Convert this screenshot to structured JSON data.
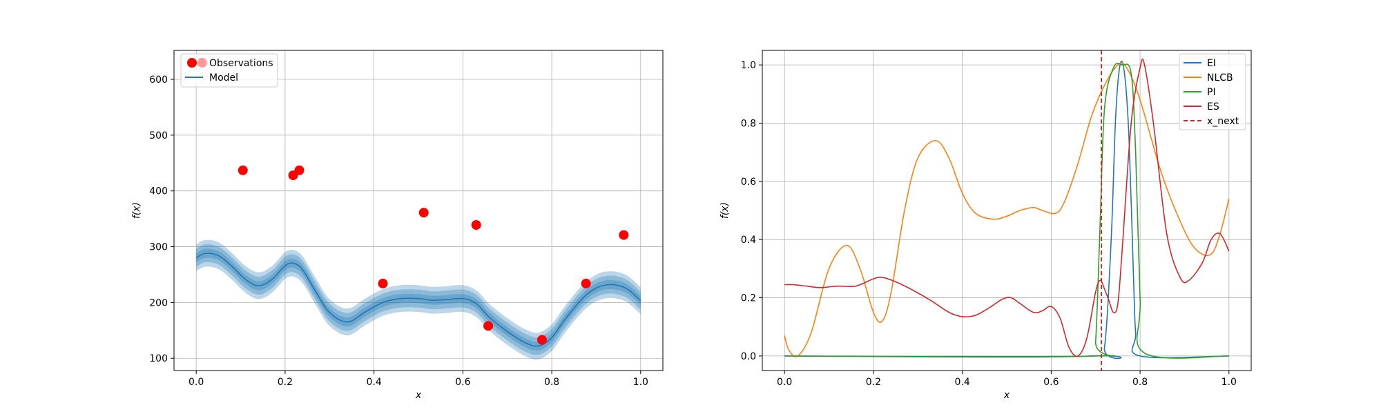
{
  "chart_data": [
    {
      "type": "scatter",
      "xlabel": "x",
      "ylabel": "f(x)",
      "xlim": [
        -0.05,
        1.05
      ],
      "ylim": [
        78,
        652
      ],
      "xticks": [
        0.0,
        0.2,
        0.4,
        0.6,
        0.8,
        1.0
      ],
      "xtick_labels": [
        "0.0",
        "0.2",
        "0.4",
        "0.6",
        "0.8",
        "1.0"
      ],
      "yticks": [
        100,
        200,
        300,
        400,
        500,
        600
      ],
      "ytick_labels": [
        "100",
        "200",
        "300",
        "400",
        "500",
        "600"
      ],
      "grid": true,
      "legend": {
        "position": "top-left",
        "entries": [
          "Observations",
          "Model"
        ]
      },
      "colors": {
        "observations": "#ff0000",
        "model": "#1f77b4",
        "band": "#1f77b4"
      },
      "observations": {
        "x": [
          0.015,
          0.105,
          0.218,
          0.232,
          0.42,
          0.512,
          0.63,
          0.657,
          0.778,
          0.877,
          0.962
        ],
        "y": [
          630,
          437,
          428,
          437,
          234,
          361,
          339,
          158,
          133,
          234,
          321
        ]
      },
      "model": {
        "x": [
          0,
          0.02,
          0.05,
          0.08,
          0.11,
          0.14,
          0.17,
          0.2,
          0.22,
          0.24,
          0.27,
          0.3,
          0.34,
          0.38,
          0.42,
          0.46,
          0.5,
          0.53,
          0.56,
          0.6,
          0.63,
          0.66,
          0.7,
          0.74,
          0.77,
          0.8,
          0.83,
          0.87,
          0.9,
          0.93,
          0.96,
          0.98,
          1.0
        ],
        "mean": [
          280,
          288,
          284,
          265,
          242,
          230,
          241,
          266,
          270,
          258,
          218,
          182,
          165,
          183,
          200,
          207,
          207,
          204,
          205,
          207,
          198,
          173,
          148,
          128,
          122,
          137,
          170,
          208,
          226,
          232,
          228,
          218,
          203
        ],
        "band_widths": [
          8,
          16,
          24
        ]
      }
    },
    {
      "type": "line",
      "xlabel": "x",
      "ylabel": "f(x)",
      "xlim": [
        -0.05,
        1.05
      ],
      "ylim": [
        -0.05,
        1.05
      ],
      "xticks": [
        0.0,
        0.2,
        0.4,
        0.6,
        0.8,
        1.0
      ],
      "xtick_labels": [
        "0.0",
        "0.2",
        "0.4",
        "0.6",
        "0.8",
        "1.0"
      ],
      "yticks": [
        0.0,
        0.2,
        0.4,
        0.6,
        0.8,
        1.0
      ],
      "ytick_labels": [
        "0.0",
        "0.2",
        "0.4",
        "0.6",
        "0.8",
        "1.0"
      ],
      "grid": true,
      "legend": {
        "position": "top-right"
      },
      "x_next": {
        "name": "x_next",
        "x": 0.713,
        "color": "#d62728"
      },
      "series": [
        {
          "name": "EI",
          "color": "#1f77b4",
          "x": [
            0,
            0.7,
            0.72,
            0.735,
            0.745,
            0.755,
            0.765,
            0.775,
            0.785,
            0.79,
            0.8,
            1.0
          ],
          "y": [
            0,
            0,
            0.03,
            0.4,
            0.82,
            1.0,
            0.97,
            0.75,
            0.28,
            0.08,
            0.0,
            0
          ]
        },
        {
          "name": "NLCB",
          "color": "#ff7f0e",
          "x": [
            0,
            0.01,
            0.03,
            0.06,
            0.1,
            0.14,
            0.17,
            0.2,
            0.22,
            0.24,
            0.27,
            0.3,
            0.34,
            0.37,
            0.4,
            0.43,
            0.47,
            0.5,
            0.53,
            0.56,
            0.58,
            0.61,
            0.63,
            0.66,
            0.69,
            0.72,
            0.75,
            0.77,
            0.8,
            0.85,
            0.9,
            0.93,
            0.96,
            0.98,
            1.0
          ],
          "y": [
            0.07,
            0.02,
            0.0,
            0.08,
            0.3,
            0.38,
            0.3,
            0.15,
            0.12,
            0.22,
            0.5,
            0.68,
            0.74,
            0.68,
            0.56,
            0.49,
            0.47,
            0.48,
            0.5,
            0.51,
            0.5,
            0.49,
            0.53,
            0.66,
            0.82,
            0.93,
            1.0,
            0.99,
            0.88,
            0.62,
            0.43,
            0.36,
            0.35,
            0.42,
            0.54
          ]
        },
        {
          "name": "PI",
          "color": "#2ca02c",
          "x": [
            0,
            0.69,
            0.7,
            0.71,
            0.72,
            0.74,
            0.76,
            0.78,
            0.79,
            0.8,
            0.81,
            1.0
          ],
          "y": [
            0,
            0,
            0.05,
            0.45,
            0.85,
            0.99,
            1.0,
            0.97,
            0.7,
            0.2,
            0.01,
            0
          ]
        },
        {
          "name": "ES",
          "color": "#d62728",
          "x": [
            0,
            0.02,
            0.05,
            0.08,
            0.12,
            0.16,
            0.2,
            0.22,
            0.25,
            0.29,
            0.33,
            0.37,
            0.4,
            0.43,
            0.46,
            0.49,
            0.51,
            0.53,
            0.56,
            0.58,
            0.6,
            0.62,
            0.64,
            0.66,
            0.68,
            0.7,
            0.71,
            0.72,
            0.73,
            0.74,
            0.75,
            0.76,
            0.78,
            0.8,
            0.81,
            0.83,
            0.86,
            0.89,
            0.91,
            0.94,
            0.96,
            0.98,
            1.0
          ],
          "y": [
            0.245,
            0.245,
            0.24,
            0.235,
            0.24,
            0.24,
            0.265,
            0.27,
            0.255,
            0.225,
            0.19,
            0.15,
            0.135,
            0.14,
            0.165,
            0.195,
            0.2,
            0.18,
            0.15,
            0.155,
            0.17,
            0.13,
            0.03,
            0.0,
            0.06,
            0.22,
            0.26,
            0.23,
            0.19,
            0.15,
            0.18,
            0.37,
            0.8,
            0.99,
            1.0,
            0.8,
            0.42,
            0.27,
            0.26,
            0.32,
            0.4,
            0.42,
            0.36
          ]
        }
      ]
    }
  ]
}
